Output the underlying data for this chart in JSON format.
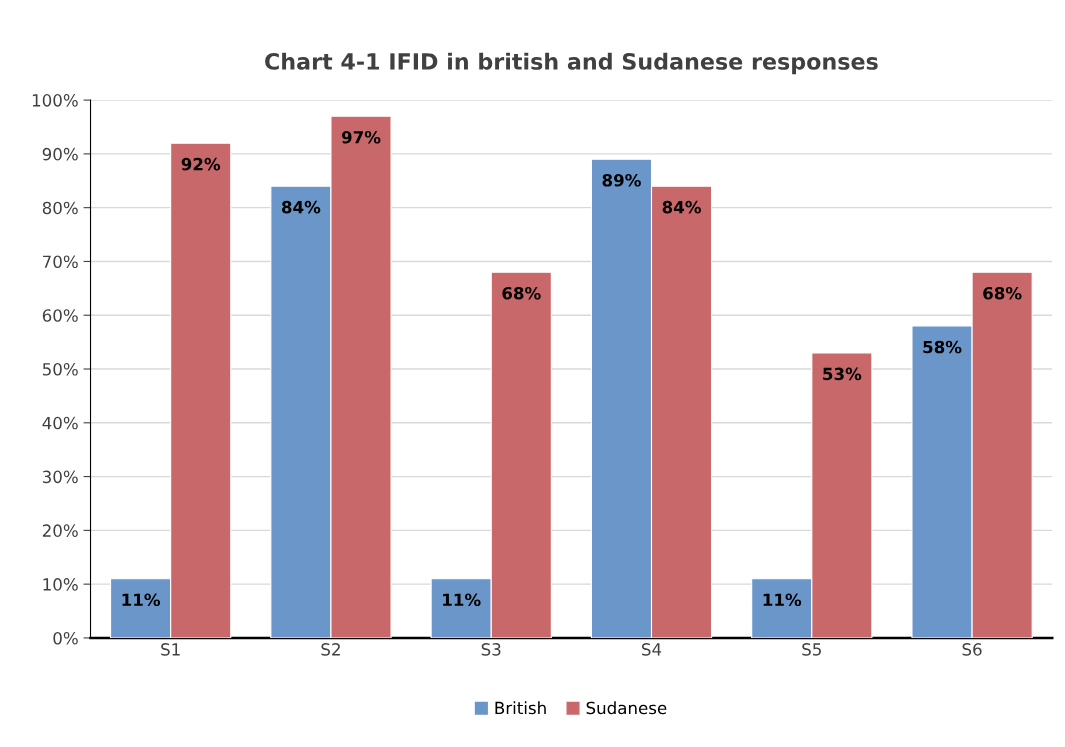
{
  "chart_data": {
    "type": "bar",
    "title": "Chart 4-1 IFID in british and Sudanese responses",
    "categories": [
      "S1",
      "S2",
      "S3",
      "S4",
      "S5",
      "S6"
    ],
    "series": [
      {
        "name": "British",
        "color": "#6a96c9",
        "values": [
          11,
          84,
          11,
          89,
          11,
          58
        ],
        "value_labels": [
          "11%",
          "84%",
          "11%",
          "89%",
          "11%",
          "58%"
        ]
      },
      {
        "name": "Sudanese",
        "color": "#c9686a",
        "values": [
          92,
          97,
          68,
          84,
          53,
          68
        ],
        "value_labels": [
          "92%",
          "97%",
          "68%",
          "84%",
          "53%",
          "68%"
        ]
      }
    ],
    "ylim": [
      0,
      100
    ],
    "yticks": [
      {
        "value": 0,
        "label": "0%"
      },
      {
        "value": 10,
        "label": "10%"
      },
      {
        "value": 20,
        "label": "20%"
      },
      {
        "value": 30,
        "label": "30%"
      },
      {
        "value": 40,
        "label": "40%"
      },
      {
        "value": 50,
        "label": "50%"
      },
      {
        "value": 60,
        "label": "60%"
      },
      {
        "value": 70,
        "label": "70%"
      },
      {
        "value": 80,
        "label": "80%"
      },
      {
        "value": 90,
        "label": "90%"
      },
      {
        "value": 100,
        "label": "100%"
      }
    ],
    "grid": "y",
    "legend": "bottom"
  }
}
